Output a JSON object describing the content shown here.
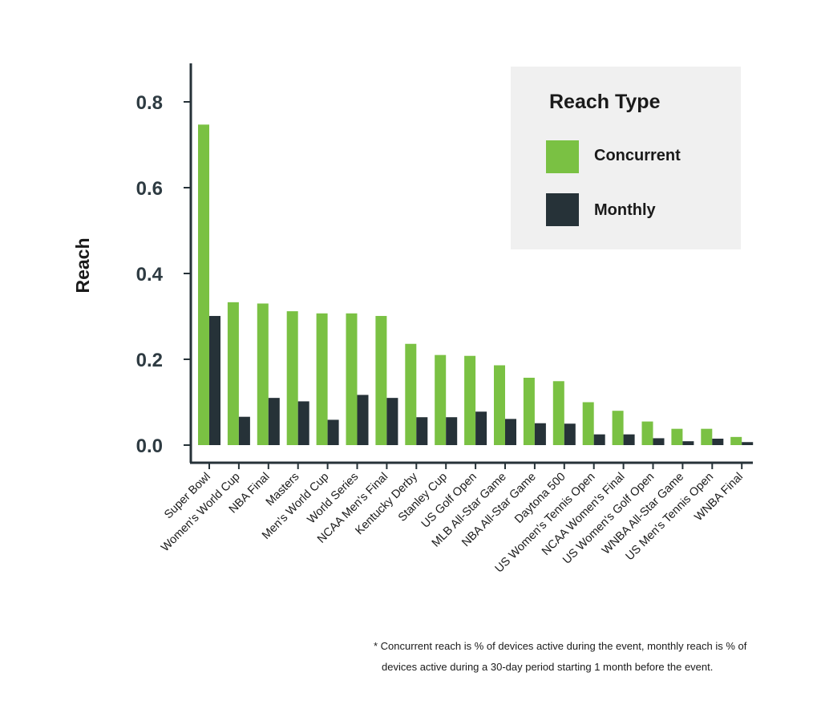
{
  "chart_data": {
    "type": "bar",
    "title": "",
    "xlabel": "",
    "ylabel": "Reach",
    "ylim": [
      0,
      0.88
    ],
    "yticks": [
      "0.0",
      "0.2",
      "0.4",
      "0.6",
      "0.8"
    ],
    "ytick_values": [
      0,
      0.2,
      0.4,
      0.6,
      0.8
    ],
    "grid": false,
    "legend": {
      "title": "Reach Type",
      "position": "top-right"
    },
    "categories": [
      "Super Bowl",
      "Women's World Cup",
      "NBA Final",
      "Masters",
      "Men's World Cup",
      "World Series",
      "NCAA Men's Final",
      "Kentucky Derby",
      "Stanley Cup",
      "US Golf Open",
      "MLB All-Star Game",
      "NBA All-Star Game",
      "Daytona 500",
      "US Women's Tennis Open",
      "NCAA Women's Final",
      "US Women's Golf Open",
      "WNBA All-Star Game",
      "US Men's Tennis Open",
      "WNBA Final"
    ],
    "series": [
      {
        "name": "Concurrent",
        "color": "#7ac143",
        "values": [
          0.747,
          0.333,
          0.33,
          0.312,
          0.307,
          0.307,
          0.301,
          0.236,
          0.21,
          0.208,
          0.186,
          0.157,
          0.149,
          0.1,
          0.08,
          0.055,
          0.038,
          0.038,
          0.019
        ]
      },
      {
        "name": "Monthly",
        "color": "#263238",
        "values": [
          0.301,
          0.066,
          0.11,
          0.102,
          0.059,
          0.117,
          0.11,
          0.065,
          0.065,
          0.078,
          0.061,
          0.051,
          0.05,
          0.025,
          0.025,
          0.016,
          0.009,
          0.015,
          0.007
        ]
      }
    ]
  },
  "footnote": {
    "line1": "* Concurrent reach is % of devices active during the event, monthly reach is % of",
    "line2": "devices active during a 30-day period starting 1 month before the event."
  }
}
